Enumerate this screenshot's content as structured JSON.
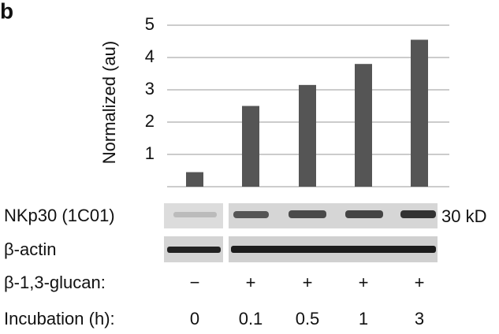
{
  "chart_data": {
    "type": "bar",
    "panel_label": "b",
    "ylabel": "Normalized (au)",
    "values": [
      0.45,
      2.5,
      3.15,
      3.8,
      4.55
    ],
    "color": "#555555",
    "ylim": [
      0,
      5
    ],
    "yticks": [
      1,
      2,
      3,
      4,
      5
    ],
    "grid": true,
    "blot_labels": [
      "NKp30 (1C01)",
      "β-actin"
    ],
    "size_marker": "30 kD",
    "row_labels": [
      "β-1,3-glucan:",
      "Incubation (h):"
    ],
    "glucan": [
      "−",
      "+",
      "+",
      "+",
      "+"
    ],
    "categories": [
      "0",
      "0.1",
      "0.5",
      "1",
      "3"
    ]
  }
}
